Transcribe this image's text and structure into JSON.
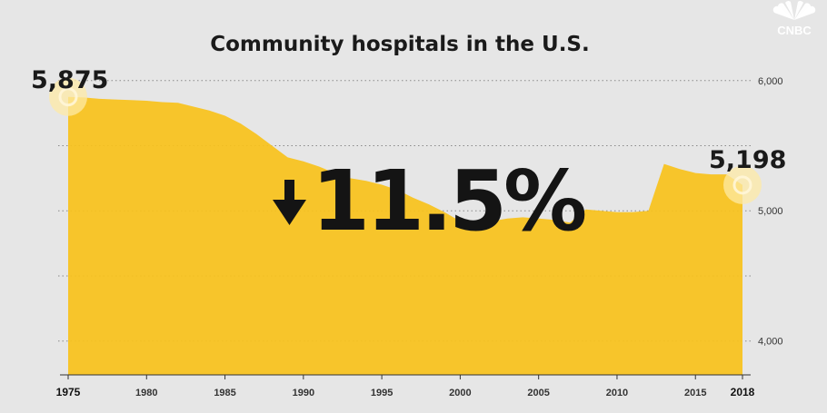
{
  "network_logo": {
    "text": "CNBC"
  },
  "chart_data": {
    "type": "area",
    "title": "Community hospitals in the U.S.",
    "x": [
      1975,
      1976,
      1977,
      1978,
      1979,
      1980,
      1981,
      1982,
      1983,
      1984,
      1985,
      1986,
      1987,
      1988,
      1989,
      1990,
      1991,
      1992,
      1993,
      1994,
      1995,
      1996,
      1997,
      1998,
      1999,
      2000,
      2001,
      2002,
      2003,
      2004,
      2005,
      2006,
      2007,
      2008,
      2009,
      2010,
      2011,
      2012,
      2013,
      2014,
      2015,
      2016,
      2017,
      2018
    ],
    "values": [
      5875,
      5870,
      5860,
      5855,
      5850,
      5845,
      5835,
      5830,
      5800,
      5770,
      5730,
      5670,
      5590,
      5500,
      5410,
      5380,
      5340,
      5290,
      5250,
      5230,
      5200,
      5160,
      5100,
      5050,
      4990,
      4920,
      4910,
      4920,
      4940,
      4950,
      4940,
      4930,
      4910,
      5010,
      5000,
      4990,
      4990,
      5000,
      5360,
      5320,
      5290,
      5280,
      5280,
      5198
    ],
    "x_ticks": [
      "1975",
      "1980",
      "1985",
      "1990",
      "1995",
      "2000",
      "2005",
      "2010",
      "2015",
      "2018"
    ],
    "y_ticks": [
      "4,000",
      "5,000",
      "6,000"
    ],
    "ylim": [
      3740,
      6110
    ],
    "grid": true,
    "fill_color": "#f9c21b",
    "annotations": {
      "start_label": "5,875",
      "end_label": "5,198",
      "change_label": "11.5%",
      "change_direction": "down"
    }
  }
}
